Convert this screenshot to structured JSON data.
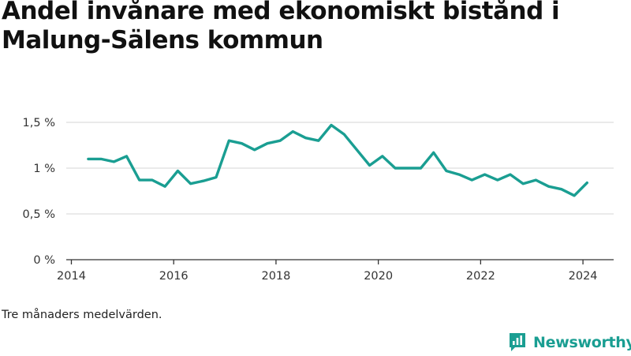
{
  "title": "Andel invånare med ekonomiskt bistånd i Malung-Sälens kommun",
  "note": "Tre månaders medelvärden.",
  "brand": {
    "name": "Newsworthy",
    "icon": "newsworthy-logo-icon"
  },
  "colors": {
    "line": "#1a9e92",
    "grid": "#dddddd",
    "axis": "#333333",
    "brand": "#1a9e92"
  },
  "chart_data": {
    "type": "line",
    "title": "Andel invånare med ekonomiskt bistånd i Malung-Sälens kommun",
    "xlabel": "",
    "ylabel": "",
    "xlim": [
      2013.9,
      2024.6
    ],
    "ylim": [
      0,
      1.5
    ],
    "x_ticks": [
      2014,
      2016,
      2018,
      2020,
      2022,
      2024
    ],
    "x_tick_labels": [
      "2014",
      "2016",
      "2018",
      "2020",
      "2022",
      "2024"
    ],
    "y_ticks": [
      0,
      0.5,
      1,
      1.5
    ],
    "y_tick_labels": [
      "0 %",
      "0,5 %",
      "1 %",
      "1,5 %"
    ],
    "grid": true,
    "legend": "none",
    "series": [
      {
        "x": [
          2014.33,
          2014.58,
          2014.83,
          2015.08,
          2015.33,
          2015.58,
          2015.83,
          2016.08,
          2016.33,
          2016.58,
          2016.83,
          2017.08,
          2017.33,
          2017.58,
          2017.83,
          2018.08,
          2018.33,
          2018.58,
          2018.83,
          2019.08,
          2019.33,
          2019.58,
          2019.83,
          2020.08,
          2020.33,
          2020.58,
          2020.83,
          2021.08,
          2021.33,
          2021.58,
          2021.83,
          2022.08,
          2022.33,
          2022.58,
          2022.83,
          2023.08,
          2023.33,
          2023.58,
          2023.83,
          2024.08
        ],
        "values": [
          1.1,
          1.1,
          1.07,
          1.13,
          0.87,
          0.87,
          0.8,
          0.97,
          0.83,
          0.86,
          0.9,
          1.3,
          1.27,
          1.2,
          1.27,
          1.3,
          1.4,
          1.33,
          1.3,
          1.47,
          1.37,
          1.2,
          1.03,
          1.13,
          1.0,
          1.0,
          1.0,
          1.17,
          0.97,
          0.93,
          0.87,
          0.93,
          0.87,
          0.93,
          0.83,
          0.87,
          0.8,
          0.77,
          0.7,
          0.84
        ]
      }
    ]
  }
}
